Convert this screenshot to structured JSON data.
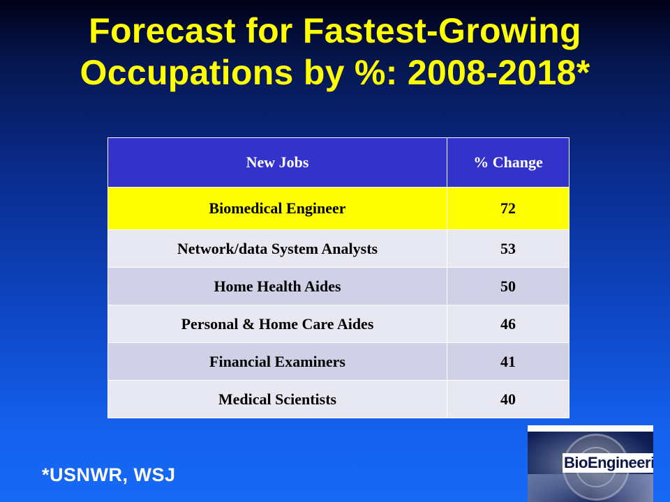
{
  "title": {
    "line1": "Forecast for Fastest-Growing",
    "line2": "Occupations by %: 2008-2018*"
  },
  "table": {
    "headers": [
      "New Jobs",
      "% Change"
    ],
    "rows": [
      {
        "job": "Biomedical Engineer",
        "change": "72"
      },
      {
        "job": "Network/data System Analysts",
        "change": "53"
      },
      {
        "job": "Home Health Aides",
        "change": "50"
      },
      {
        "job": "Personal & Home Care Aides",
        "change": "46"
      },
      {
        "job": "Financial Examiners",
        "change": "41"
      },
      {
        "job": "Medical Scientists",
        "change": "40"
      }
    ],
    "highlight_color": "#ffff00",
    "header_color": "#3333cc"
  },
  "footnote": "*USNWR, WSJ",
  "logo": {
    "text": "BioEngineering"
  },
  "colors": {
    "title": "#ffff00",
    "background_top": "#000018",
    "background_bottom": "#166af6"
  }
}
